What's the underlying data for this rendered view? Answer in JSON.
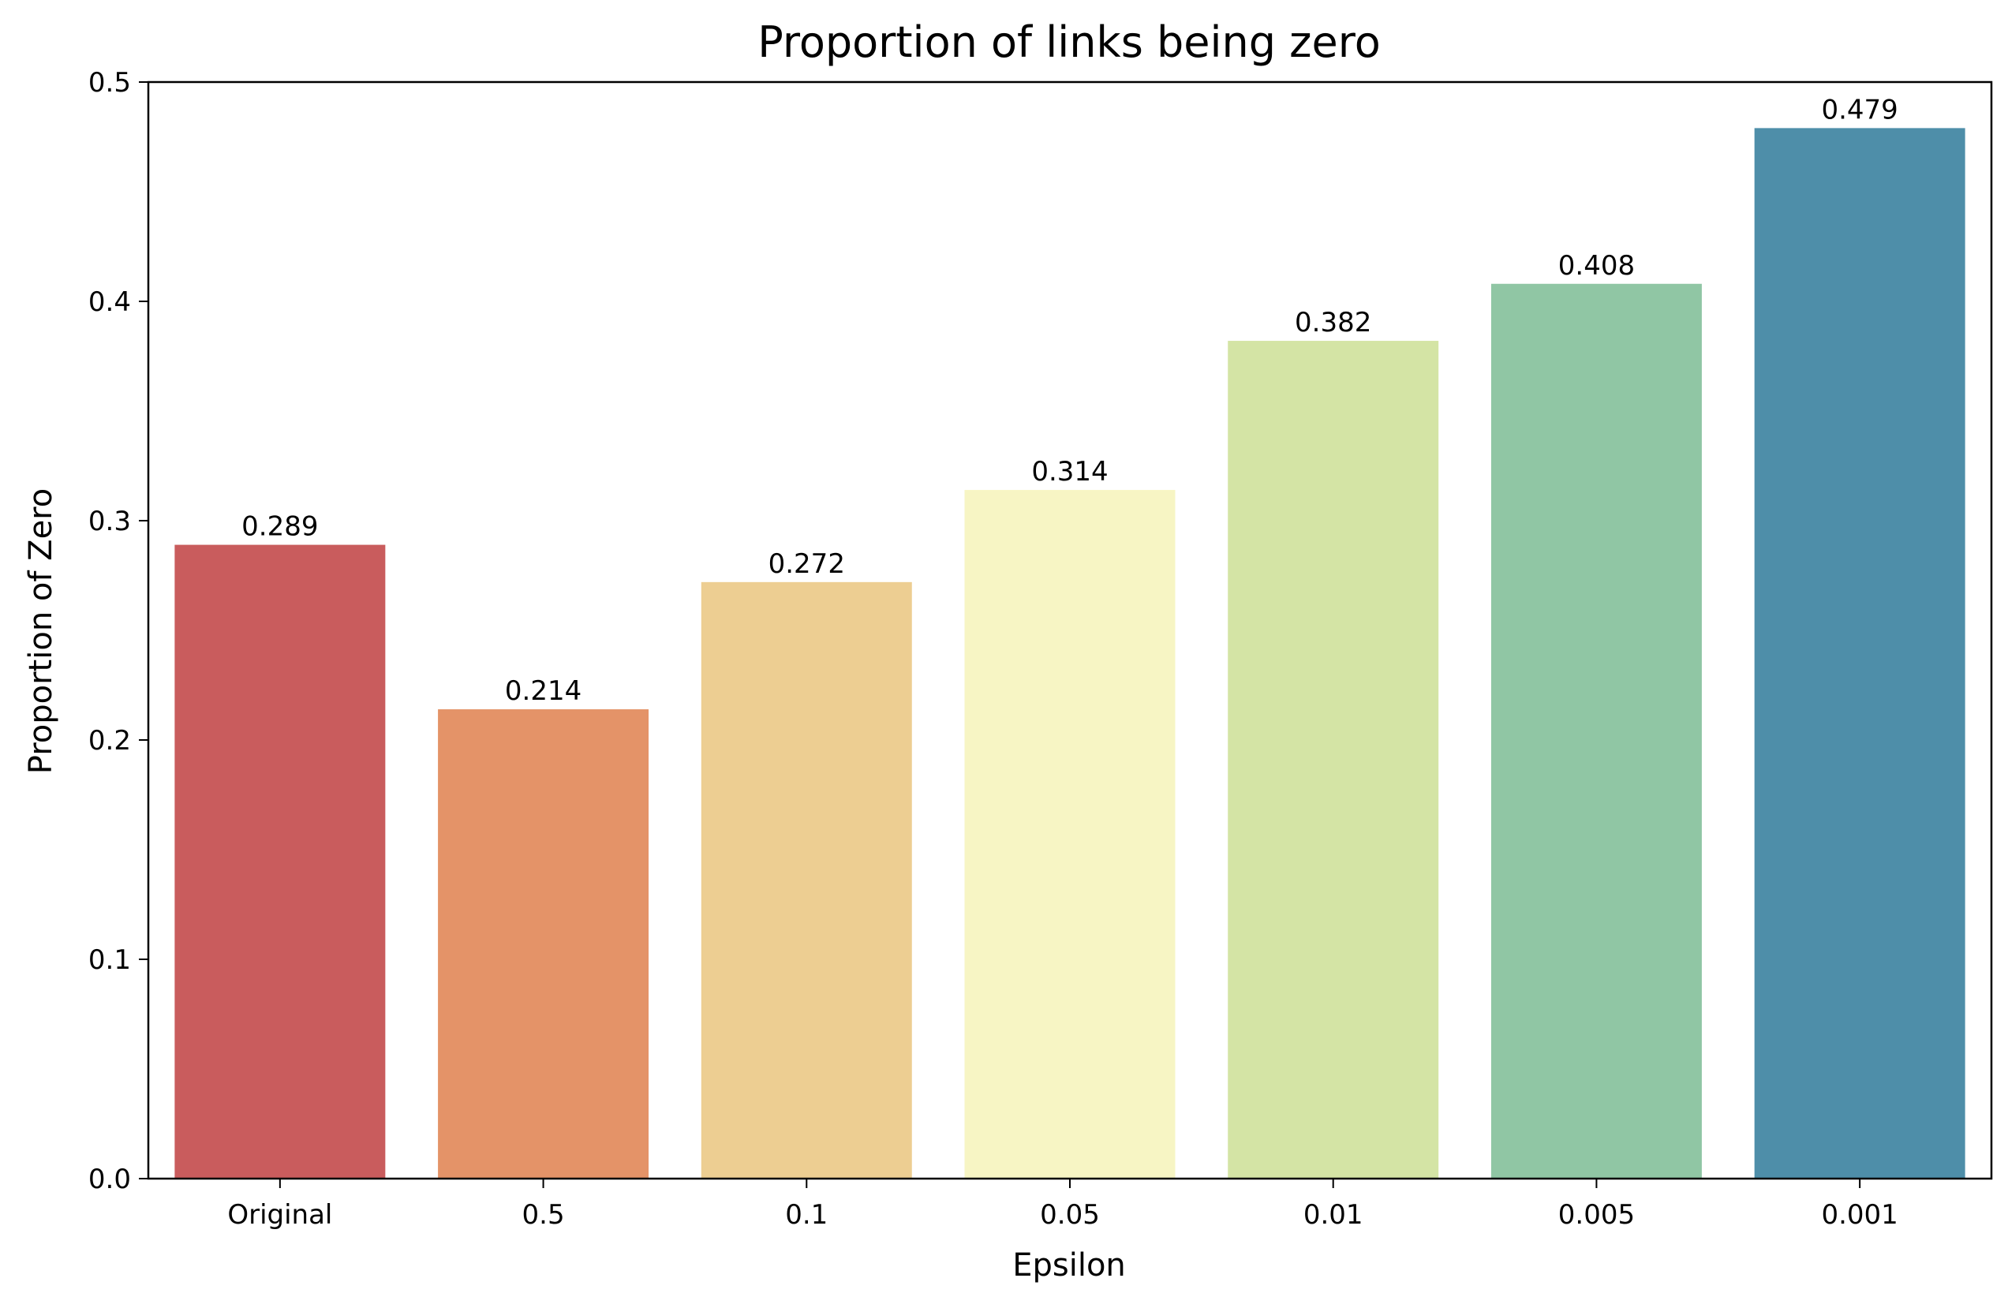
{
  "chart_data": {
    "type": "bar",
    "title": "Proportion of links being zero",
    "xlabel": "Epsilon",
    "ylabel": "Proportion of Zero",
    "categories": [
      "Original",
      "0.5",
      "0.1",
      "0.05",
      "0.01",
      "0.005",
      "0.001"
    ],
    "values": [
      0.289,
      0.214,
      0.272,
      0.314,
      0.382,
      0.408,
      0.479
    ],
    "value_labels": [
      "0.289",
      "0.214",
      "0.272",
      "0.314",
      "0.382",
      "0.408",
      "0.479"
    ],
    "colors": [
      "#c95c5d",
      "#e49368",
      "#edce92",
      "#f7f5c4",
      "#d4e4a5",
      "#90c6a4",
      "#4e8ea9"
    ],
    "ylim": [
      0,
      0.5
    ],
    "yticks": [
      0.0,
      0.1,
      0.2,
      0.3,
      0.4,
      0.5
    ],
    "ytick_labels": [
      "0.0",
      "0.1",
      "0.2",
      "0.3",
      "0.4",
      "0.5"
    ],
    "grid": false,
    "legend": "none"
  }
}
